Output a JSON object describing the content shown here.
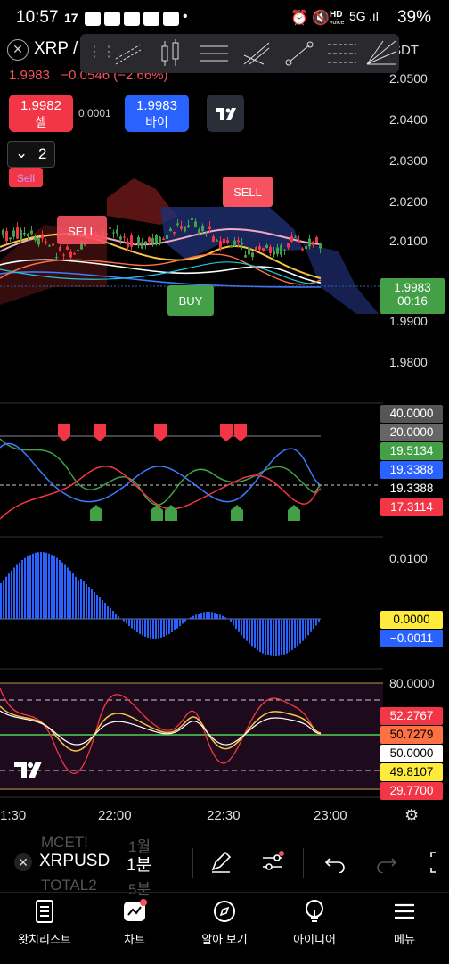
{
  "status": {
    "time": "10:57",
    "battery": "39%",
    "net_label": "HD",
    "net_sub": "voice"
  },
  "header": {
    "symbol": "XRP / ",
    "price": "1.9983",
    "change": "−0.0546 (−2.66%)",
    "pair_suffix": "SDT"
  },
  "trade": {
    "sell_price": "1.9982",
    "sell_label": "셀",
    "buy_price": "1.9983",
    "buy_label": "바이",
    "spread": "0.0001"
  },
  "collapse_count": "2",
  "signals": {
    "sell1": "Sell",
    "sell2": "SELL",
    "sell3": "SELL",
    "buy1": "BUY"
  },
  "price_axis": [
    "2.0500",
    "2.0400",
    "2.0300",
    "2.0200",
    "2.0100",
    "1.9900",
    "1.9800"
  ],
  "price_tag": {
    "price": "1.9983",
    "countdown": "00:16"
  },
  "osc_tags": [
    "40.0000",
    "20.0000",
    "19.5134",
    "19.3388",
    "19.3388",
    "17.3114"
  ],
  "macd_axis": "0.0100",
  "macd_tags": [
    "0.0000",
    "−0.0011"
  ],
  "rsi_axis": "80.0000",
  "rsi_tags": [
    "52.2767",
    "50.7279",
    "50.0000",
    "49.8107",
    "29.7700"
  ],
  "time_axis": [
    "1:30",
    "22:00",
    "22:30",
    "23:00"
  ],
  "bottom": {
    "symbol": "XRPUSD",
    "interval": "1분",
    "ghost1": "MCET!",
    "ghost1b": "1월",
    "ghost2": "TOTAL2",
    "ghost2b": "5분"
  },
  "nav": [
    {
      "label": "왓치리스트"
    },
    {
      "label": "차트"
    },
    {
      "label": "알아 보기"
    },
    {
      "label": "아이디어"
    },
    {
      "label": "메뉴"
    }
  ],
  "colors": {
    "sell": "#f23645",
    "buy": "#2962ff",
    "green": "#43a047",
    "accent": "#f7525f"
  }
}
